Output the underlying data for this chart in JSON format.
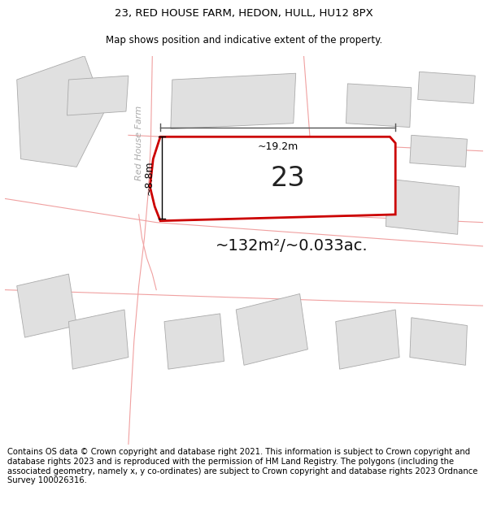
{
  "title_line1": "23, RED HOUSE FARM, HEDON, HULL, HU12 8PX",
  "title_line2": "Map shows position and indicative extent of the property.",
  "area_label": "~132m²/~0.033ac.",
  "plot_number": "23",
  "dim_width": "~19.2m",
  "dim_height": "~8.8m",
  "road_label": "Red House Farm",
  "footer_text": "Contains OS data © Crown copyright and database right 2021. This information is subject to Crown copyright and database rights 2023 and is reproduced with the permission of HM Land Registry. The polygons (including the associated geometry, namely x, y co-ordinates) are subject to Crown copyright and database rights 2023 Ordnance Survey 100026316.",
  "bg_color": "#ffffff",
  "map_bg": "#ffffff",
  "plot_fill": "#ffffff",
  "plot_edge": "#cc0000",
  "other_buildings_fill": "#e0e0e0",
  "other_buildings_edge": "#aaaaaa",
  "road_line_color": "#f0a0a0",
  "title_fontsize": 9.5,
  "subtitle_fontsize": 8.5,
  "footer_fontsize": 7.2,
  "area_label_fontsize": 14,
  "plot_number_fontsize": 24
}
